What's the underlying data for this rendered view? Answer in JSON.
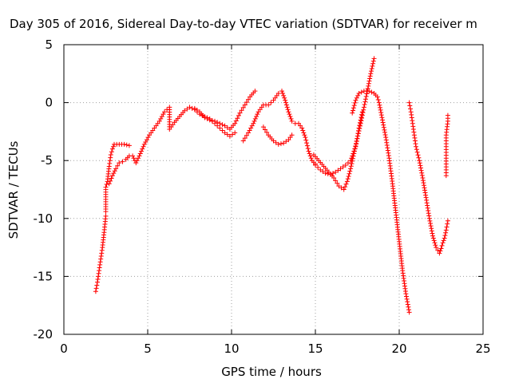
{
  "chart_data": {
    "type": "scatter",
    "title": "Day 305 of 2016, Sidereal Day-to-day VTEC variation (SDTVAR) for receiver m",
    "xlabel": "GPS time / hours",
    "ylabel": "SDTVAR / TECUs",
    "xlim": [
      0,
      25
    ],
    "ylim": [
      -20,
      5
    ],
    "x_ticks": [
      "0",
      "5",
      "10",
      "15",
      "20",
      "25"
    ],
    "y_ticks": [
      "5",
      "0",
      "-5",
      "-10",
      "-15",
      "-20"
    ],
    "grid": true,
    "marker": "plus",
    "marker_color": "#ff0000",
    "series": [
      {
        "points": [
          [
            1.9,
            -16.3
          ],
          [
            2.0,
            -15.5
          ],
          [
            2.1,
            -14.5
          ],
          [
            2.2,
            -13.5
          ],
          [
            2.3,
            -12.5
          ],
          [
            2.4,
            -11.2
          ],
          [
            2.5,
            -9.8
          ],
          [
            2.5,
            -9.4
          ],
          [
            2.5,
            -7.3
          ],
          [
            2.6,
            -6.8
          ],
          [
            2.7,
            -5.5
          ],
          [
            2.8,
            -4.5
          ],
          [
            2.9,
            -4.0
          ],
          [
            3.0,
            -3.6
          ],
          [
            3.3,
            -3.6
          ],
          [
            3.6,
            -3.6
          ],
          [
            3.9,
            -3.7
          ],
          [
            2.7,
            -7.0
          ],
          [
            2.9,
            -6.3
          ],
          [
            3.1,
            -5.7
          ],
          [
            3.3,
            -5.2
          ],
          [
            3.5,
            -5.1
          ],
          [
            3.7,
            -4.9
          ],
          [
            3.9,
            -4.6
          ],
          [
            4.1,
            -4.6
          ],
          [
            4.3,
            -5.2
          ],
          [
            4.5,
            -4.6
          ],
          [
            4.8,
            -3.6
          ],
          [
            5.1,
            -2.8
          ],
          [
            5.4,
            -2.2
          ],
          [
            5.7,
            -1.6
          ],
          [
            6.0,
            -0.8
          ],
          [
            6.3,
            -0.4
          ],
          [
            6.3,
            -2.3
          ],
          [
            6.6,
            -1.7
          ],
          [
            6.9,
            -1.2
          ],
          [
            7.2,
            -0.7
          ],
          [
            7.5,
            -0.4
          ],
          [
            7.8,
            -0.6
          ],
          [
            8.1,
            -1.0
          ],
          [
            8.4,
            -1.2
          ],
          [
            8.7,
            -1.4
          ],
          [
            9.0,
            -1.8
          ],
          [
            9.3,
            -2.2
          ],
          [
            9.6,
            -2.6
          ],
          [
            9.9,
            -2.9
          ],
          [
            10.2,
            -2.6
          ],
          [
            7.8,
            -0.5
          ],
          [
            8.1,
            -0.8
          ],
          [
            8.4,
            -1.3
          ],
          [
            8.7,
            -1.5
          ],
          [
            9.0,
            -1.6
          ],
          [
            9.3,
            -1.8
          ],
          [
            9.6,
            -2.0
          ],
          [
            9.9,
            -2.3
          ],
          [
            10.2,
            -1.8
          ],
          [
            10.5,
            -0.9
          ],
          [
            10.8,
            -0.2
          ],
          [
            11.1,
            0.5
          ],
          [
            11.4,
            1.0
          ],
          [
            10.7,
            -3.3
          ],
          [
            11.0,
            -2.6
          ],
          [
            11.3,
            -1.8
          ],
          [
            11.6,
            -0.8
          ],
          [
            11.9,
            -0.2
          ],
          [
            12.2,
            -0.2
          ],
          [
            12.5,
            0.2
          ],
          [
            12.8,
            0.8
          ],
          [
            13.0,
            1.0
          ],
          [
            13.2,
            0.2
          ],
          [
            13.4,
            -0.8
          ],
          [
            13.6,
            -1.6
          ],
          [
            13.8,
            -1.8
          ],
          [
            14.0,
            -1.8
          ],
          [
            14.2,
            -2.2
          ],
          [
            14.4,
            -3.0
          ],
          [
            14.6,
            -4.2
          ],
          [
            14.8,
            -5.0
          ],
          [
            15.0,
            -5.3
          ],
          [
            11.9,
            -2.1
          ],
          [
            12.2,
            -2.8
          ],
          [
            12.5,
            -3.3
          ],
          [
            12.8,
            -3.6
          ],
          [
            13.1,
            -3.5
          ],
          [
            13.4,
            -3.2
          ],
          [
            13.6,
            -2.8
          ],
          [
            15.0,
            -5.4
          ],
          [
            15.3,
            -5.8
          ],
          [
            15.6,
            -6.1
          ],
          [
            15.9,
            -6.2
          ],
          [
            16.2,
            -6.0
          ],
          [
            16.5,
            -5.7
          ],
          [
            16.8,
            -5.4
          ],
          [
            17.1,
            -5.0
          ],
          [
            17.4,
            -3.8
          ],
          [
            17.6,
            -2.2
          ],
          [
            17.8,
            -0.8
          ],
          [
            14.9,
            -4.5
          ],
          [
            15.2,
            -5.0
          ],
          [
            15.5,
            -5.5
          ],
          [
            15.8,
            -6.0
          ],
          [
            16.1,
            -6.5
          ],
          [
            16.4,
            -7.2
          ],
          [
            16.7,
            -7.5
          ],
          [
            16.9,
            -6.8
          ],
          [
            17.1,
            -5.7
          ],
          [
            17.3,
            -4.4
          ],
          [
            17.5,
            -3.1
          ],
          [
            17.7,
            -1.8
          ],
          [
            17.9,
            -0.4
          ],
          [
            18.1,
            1.0
          ],
          [
            18.3,
            2.5
          ],
          [
            18.5,
            3.8
          ],
          [
            17.2,
            -0.9
          ],
          [
            17.4,
            0.2
          ],
          [
            17.6,
            0.8
          ],
          [
            17.9,
            1.0
          ],
          [
            18.2,
            1.0
          ],
          [
            18.5,
            0.8
          ],
          [
            18.7,
            0.5
          ],
          [
            18.8,
            0.0
          ],
          [
            19.0,
            -1.5
          ],
          [
            19.2,
            -3.0
          ],
          [
            19.4,
            -4.8
          ],
          [
            19.6,
            -7.0
          ],
          [
            19.8,
            -9.5
          ],
          [
            20.0,
            -12.0
          ],
          [
            20.2,
            -14.5
          ],
          [
            20.4,
            -16.5
          ],
          [
            20.6,
            -18.1
          ],
          [
            20.6,
            0.0
          ],
          [
            20.7,
            -0.8
          ],
          [
            20.8,
            -1.8
          ],
          [
            20.9,
            -2.8
          ],
          [
            21.0,
            -3.8
          ],
          [
            21.2,
            -5.0
          ],
          [
            21.4,
            -6.5
          ],
          [
            21.6,
            -8.2
          ],
          [
            21.8,
            -10.0
          ],
          [
            22.0,
            -11.5
          ],
          [
            22.2,
            -12.5
          ],
          [
            22.4,
            -13.0
          ],
          [
            22.5,
            -12.6
          ],
          [
            22.6,
            -12.1
          ],
          [
            22.7,
            -11.7
          ],
          [
            22.8,
            -11.0
          ],
          [
            22.9,
            -10.2
          ],
          [
            22.8,
            -6.3
          ],
          [
            22.8,
            -5.8
          ],
          [
            22.8,
            -4.8
          ],
          [
            22.8,
            -3.8
          ],
          [
            22.8,
            -3.3
          ],
          [
            22.8,
            -2.8
          ],
          [
            22.9,
            -1.6
          ],
          [
            22.9,
            -1.1
          ]
        ]
      }
    ]
  }
}
